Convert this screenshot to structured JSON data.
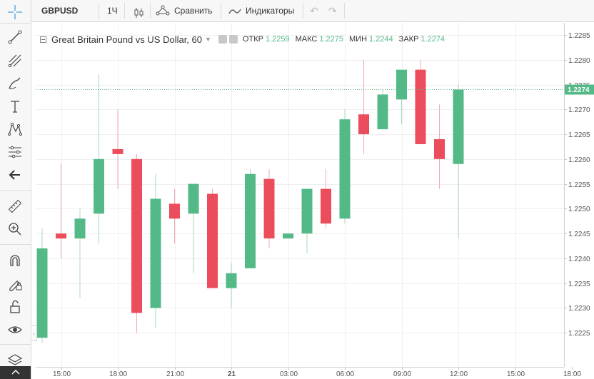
{
  "toolbar": {
    "symbol": "GBPUSD",
    "interval": "1Ч",
    "compare_label": "Сравнить",
    "indicators_label": "Индикаторы",
    "undo_icon": "↶",
    "redo_icon": "↷"
  },
  "legend": {
    "title": "Great Britain Pound vs US Dollar, 60",
    "open_label": "ОТКР",
    "open_value": "1.2259",
    "high_label": "МАКС",
    "high_value": "1.2275",
    "low_label": "МИН",
    "low_value": "1.2244",
    "close_label": "ЗАКР",
    "close_value": "1.2274"
  },
  "colors": {
    "up": "#53b987",
    "down": "#eb4d5c",
    "grid": "#efefef",
    "axis_text": "#555555",
    "last_price_bg": "#53b987"
  },
  "chart_data": {
    "type": "candlestick",
    "title": "Great Britain Pound vs US Dollar, 60",
    "interval": "60",
    "ylim": [
      1.2219,
      1.2286
    ],
    "y_ticks": [
      1.2225,
      1.223,
      1.2235,
      1.224,
      1.2245,
      1.225,
      1.2255,
      1.226,
      1.2265,
      1.227,
      1.2275,
      1.228,
      1.2285
    ],
    "x_ticks": [
      {
        "label": "15:00",
        "index": 1
      },
      {
        "label": "18:00",
        "index": 4
      },
      {
        "label": "21:00",
        "index": 7
      },
      {
        "label": "21",
        "index": 10,
        "bold": true
      },
      {
        "label": "03:00",
        "index": 13
      },
      {
        "label": "06:00",
        "index": 16
      },
      {
        "label": "09:00",
        "index": 19
      },
      {
        "label": "12:00",
        "index": 22
      },
      {
        "label": "15:00",
        "index": 25
      },
      {
        "label": "18:00",
        "index": 28
      }
    ],
    "last_price": 1.2274,
    "candles": [
      {
        "o": 1.2224,
        "h": 1.2246,
        "l": 1.2223,
        "c": 1.2242
      },
      {
        "o": 1.2245,
        "h": 1.2259,
        "l": 1.224,
        "c": 1.2244
      },
      {
        "o": 1.2244,
        "h": 1.225,
        "l": 1.2232,
        "c": 1.2248
      },
      {
        "o": 1.2249,
        "h": 1.2277,
        "l": 1.2243,
        "c": 1.226
      },
      {
        "o": 1.2262,
        "h": 1.227,
        "l": 1.2254,
        "c": 1.2261
      },
      {
        "o": 1.226,
        "h": 1.2261,
        "l": 1.2225,
        "c": 1.2229
      },
      {
        "o": 1.223,
        "h": 1.2257,
        "l": 1.2226,
        "c": 1.2252
      },
      {
        "o": 1.2251,
        "h": 1.2254,
        "l": 1.2243,
        "c": 1.2248
      },
      {
        "o": 1.2249,
        "h": 1.2255,
        "l": 1.2237,
        "c": 1.2255
      },
      {
        "o": 1.2253,
        "h": 1.2254,
        "l": 1.2234,
        "c": 1.2234
      },
      {
        "o": 1.2234,
        "h": 1.2239,
        "l": 1.223,
        "c": 1.2237
      },
      {
        "o": 1.2238,
        "h": 1.2258,
        "l": 1.2238,
        "c": 1.2257
      },
      {
        "o": 1.2256,
        "h": 1.2258,
        "l": 1.2242,
        "c": 1.2244
      },
      {
        "o": 1.2244,
        "h": 1.2245,
        "l": 1.2244,
        "c": 1.2245
      },
      {
        "o": 1.2245,
        "h": 1.2254,
        "l": 1.2241,
        "c": 1.2254
      },
      {
        "o": 1.2254,
        "h": 1.2258,
        "l": 1.2246,
        "c": 1.2247
      },
      {
        "o": 1.2248,
        "h": 1.227,
        "l": 1.2247,
        "c": 1.2268
      },
      {
        "o": 1.2269,
        "h": 1.228,
        "l": 1.2261,
        "c": 1.2265
      },
      {
        "o": 1.2266,
        "h": 1.2274,
        "l": 1.2266,
        "c": 1.2273
      },
      {
        "o": 1.2272,
        "h": 1.2278,
        "l": 1.2267,
        "c": 1.2278
      },
      {
        "o": 1.2278,
        "h": 1.228,
        "l": 1.2263,
        "c": 1.2263
      },
      {
        "o": 1.2264,
        "h": 1.2271,
        "l": 1.2254,
        "c": 1.226
      },
      {
        "o": 1.2259,
        "h": 1.2275,
        "l": 1.2244,
        "c": 1.2274
      }
    ]
  },
  "left_tools": [
    {
      "name": "crosshair-icon"
    },
    {
      "name": "trend-line-icon"
    },
    {
      "name": "pitchfork-icon"
    },
    {
      "name": "brush-icon"
    },
    {
      "name": "text-icon"
    },
    {
      "name": "pattern-icon"
    },
    {
      "name": "prediction-icon"
    },
    {
      "name": "back-arrow-icon"
    },
    {
      "name": "ruler-icon"
    },
    {
      "name": "zoom-in-icon"
    },
    {
      "name": "magnet-icon"
    },
    {
      "name": "lock-drawing-icon"
    },
    {
      "name": "unlock-icon"
    },
    {
      "name": "eye-icon"
    },
    {
      "name": "layers-icon"
    }
  ]
}
